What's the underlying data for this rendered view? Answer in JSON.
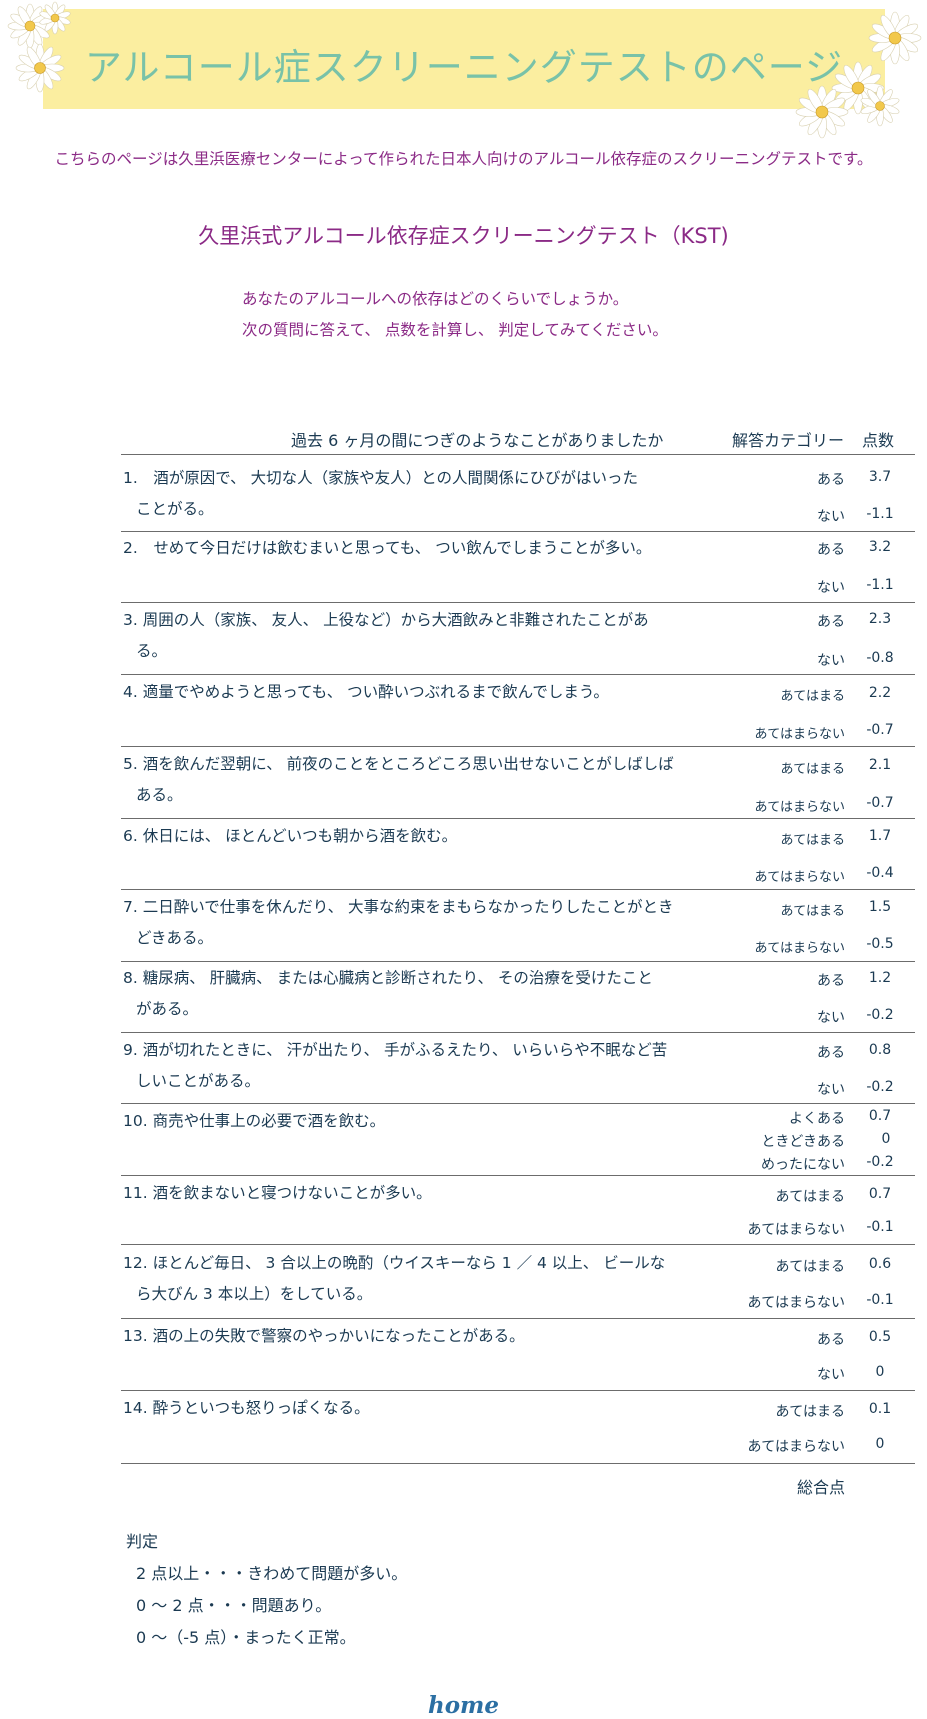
{
  "page": {
    "title": "アルコール症スクリーニングテストのページ",
    "intro": "こちらのページは久里浜医療センターによって作られた日本人向けのアルコール依存症のスクリーニングテストです。",
    "subtitle": "久里浜式アルコール依存症スクリーニングテスト（KST)",
    "lead1": "あなたのアルコールへの依存はどのくらいでしょうか。",
    "lead2": "次の質問に答えて、 点数を計算し、 判定してみてください。"
  },
  "table": {
    "header_question": "過去 6 ヶ月の間につぎのようなことがありましたか",
    "header_category": "解答カテゴリー",
    "header_points": "点数",
    "total_label": "総合点",
    "questions": [
      {
        "l1": "1.　酒が原因で、 大切な人（家族や友人）との人間関係にひびがはいった",
        "l2": "ことがる。",
        "a1": "ある",
        "p1": "3.7",
        "a2": "ない",
        "p2": "-1.1"
      },
      {
        "l1": "2.　せめて今日だけは飲むまいと思っても、 つい飲んでしまうことが多い。",
        "l2": "",
        "a1": "ある",
        "p1": "3.2",
        "a2": "ない",
        "p2": "-1.1"
      },
      {
        "l1": "3. 周囲の人（家族、 友人、 上役など）から大酒飲みと非難されたことがあ",
        "l2": "る。",
        "a1": "ある",
        "p1": "2.3",
        "a2": "ない",
        "p2": "-0.8"
      },
      {
        "l1": "4. 適量でやめようと思っても、 つい酔いつぶれるまで飲んでしまう。",
        "l2": "",
        "a1": "あてはまる",
        "p1": "2.2",
        "a2": "あてはまらない",
        "p2": "-0.7"
      },
      {
        "l1": "5. 酒を飲んだ翌朝に、 前夜のことをところどころ思い出せないことがしばしば",
        "l2": "ある。",
        "a1": "あてはまる",
        "p1": "2.1",
        "a2": "あてはまらない",
        "p2": "-0.7"
      },
      {
        "l1": "6. 休日には、 ほとんどいつも朝から酒を飲む。",
        "l2": "",
        "a1": "あてはまる",
        "p1": "1.7",
        "a2": "あてはまらない",
        "p2": "-0.4"
      },
      {
        "l1": "7. 二日酔いで仕事を休んだり、 大事な約束をまもらなかったりしたことがとき",
        "l2": "どきある。",
        "a1": "あてはまる",
        "p1": "1.5",
        "a2": "あてはまらない",
        "p2": "-0.5"
      },
      {
        "l1": "8. 糖尿病、 肝臓病、 または心臓病と診断されたり、 その治療を受けたこと",
        "l2": "がある。",
        "a1": "ある",
        "p1": "1.2",
        "a2": "ない",
        "p2": "-0.2"
      },
      {
        "l1": "9. 酒が切れたときに、 汗が出たり、 手がふるえたり、 いらいらや不眠など苦",
        "l2": "しいことがある。",
        "a1": "ある",
        "p1": "0.8",
        "a2": "ない",
        "p2": "-0.2"
      },
      {
        "l1": "10. 商売や仕事上の必要で酒を飲む。",
        "l2": "",
        "a1": "よくある",
        "p1": "0.7",
        "a2": "ときどきある",
        "p2": "0",
        "a3": "めったにない",
        "p3": "-0.2"
      },
      {
        "l1": "11. 酒を飲まないと寝つけないことが多い。",
        "l2": "",
        "a1": "あてはまる",
        "p1": "0.7",
        "a2": "あてはまらない",
        "p2": "-0.1"
      },
      {
        "l1": "12. ほとんど毎日、 3 合以上の晩酌（ウイスキーなら 1 ／ 4 以上、 ビールな",
        "l2": "ら大びん 3 本以上）をしている。",
        "a1": "あてはまる",
        "p1": "0.6",
        "a2": "あてはまらない",
        "p2": "-0.1"
      },
      {
        "l1": "13. 酒の上の失敗で警察のやっかいになったことがある。",
        "l2": "",
        "a1": "ある",
        "p1": "0.5",
        "a2": "ない",
        "p2": "0"
      },
      {
        "l1": "14. 酔うといつも怒りっぽくなる。",
        "l2": "",
        "a1": "あてはまる",
        "p1": "0.1",
        "a2": "あてはまらない",
        "p2": "0"
      }
    ]
  },
  "verdict": {
    "heading": "判定",
    "line1": "2 点以上・・・きわめて問題が多い。",
    "line2": "0 ～ 2 点・・・問題あり。",
    "line3": "0 ～（-5 点）・まったく正常。"
  },
  "nav": {
    "home": "home"
  }
}
